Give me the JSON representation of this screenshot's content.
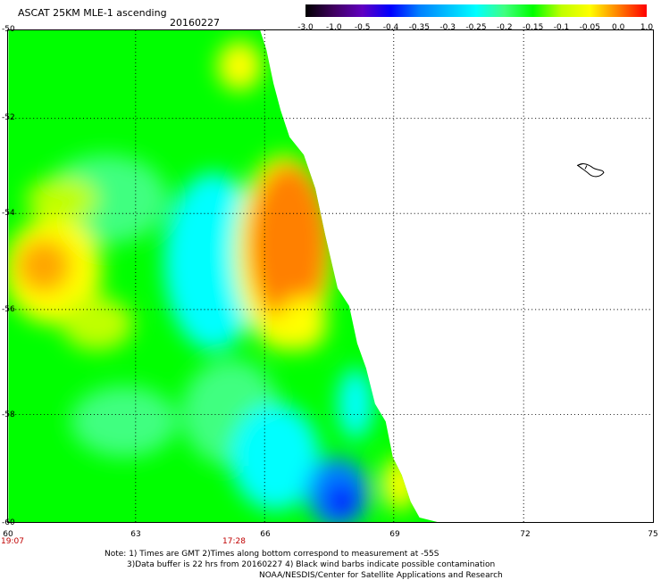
{
  "header": {
    "title": "ASCAT 25KM MLE-1 ascending",
    "date": "20160227"
  },
  "colorbar": {
    "labels": [
      "-3.0",
      "-1.0",
      "-0.5",
      "-0.4",
      "-0.35",
      "-0.3",
      "-0.25",
      "-0.2",
      "-0.15",
      "-0.1",
      "-0.05",
      "0.0",
      "1.0"
    ],
    "colors": [
      "#000000",
      "#400060",
      "#6000c0",
      "#0000ff",
      "#0080ff",
      "#00c0ff",
      "#00ffff",
      "#40ff80",
      "#00ff00",
      "#c0ff00",
      "#ffff00",
      "#ff8000",
      "#ff0000"
    ]
  },
  "map": {
    "lat_labels": [
      "-50",
      "-52",
      "-54",
      "-56",
      "-58",
      "-60"
    ],
    "lon_labels": [
      "60",
      "63",
      "66",
      "69",
      "72",
      "75"
    ],
    "time_labels": [
      "19:07",
      "17:28"
    ]
  },
  "notes": {
    "line1": "Note: 1) Times are GMT 2)Times along bottom correspond to measurement at -55S",
    "line2": "3)Data buffer is 22 hrs from 20160227 4) Black wind barbs indicate possible contamination",
    "line3": "NOAA/NESDIS/Center for Satellite Applications and Research"
  }
}
